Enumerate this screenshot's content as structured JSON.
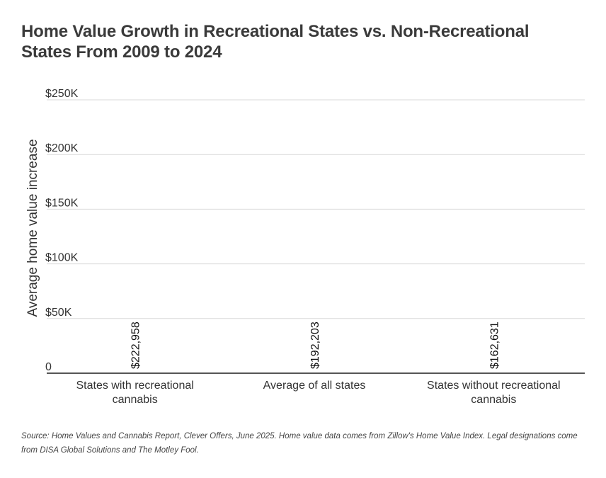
{
  "chart": {
    "title": "Home Value Growth in Recreational States vs. Non-Recreational States From 2009 to 2024",
    "source": "Source: Home Values and Cannabis Report, Clever Offers, June 2025. Home value data comes from Zillow's Home Value Index. Legal designations come from DISA Global Solutions and The Motley Fool."
  },
  "chart_data": {
    "type": "bar",
    "title": "Home Value Growth in Recreational States vs. Non-Recreational States From 2009 to 2024",
    "xlabel": "",
    "ylabel": "Average home value increase",
    "categories": [
      [
        "States with recreational",
        "cannabis"
      ],
      [
        "Average of all states"
      ],
      [
        "States without recreational",
        "cannabis"
      ]
    ],
    "values": [
      222958,
      192203,
      162631
    ],
    "data_labels": [
      "$222,958",
      "$192,203",
      "$162,631"
    ],
    "ylim": [
      0,
      250000
    ],
    "yticks": [
      0,
      50000,
      100000,
      150000,
      200000,
      250000
    ],
    "ytick_labels": [
      "0",
      "$50K",
      "$100K",
      "$150K",
      "$200K",
      "$250K"
    ],
    "grid": true,
    "legend": "none",
    "colors": {
      "gridline": "#d9d9d9",
      "baseline": "#555555",
      "text": "#333333",
      "data_label": "#111111"
    }
  }
}
